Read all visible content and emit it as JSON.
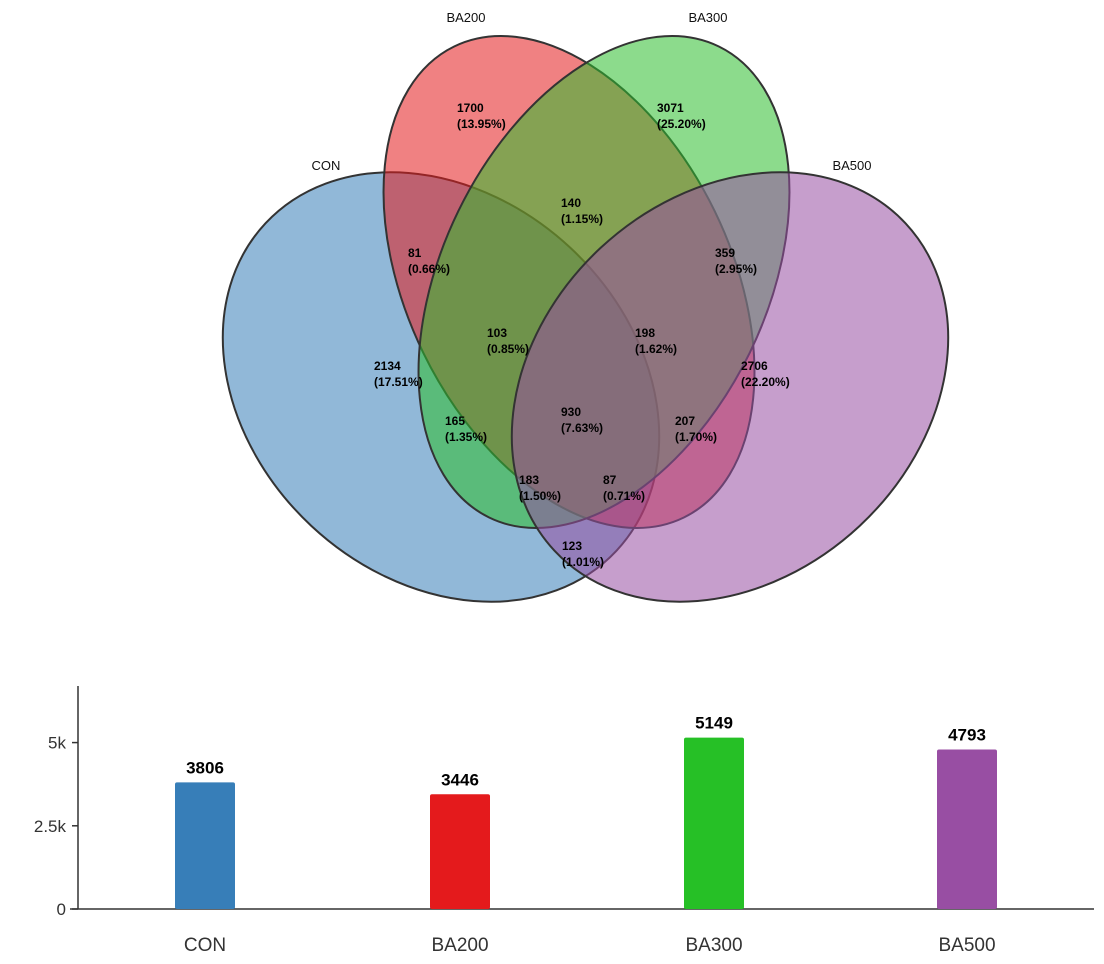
{
  "chart_data": [
    {
      "type": "venn",
      "sets": [
        {
          "name": "CON",
          "color": "#377eb8"
        },
        {
          "name": "BA200",
          "color": "#e41a1c"
        },
        {
          "name": "BA300",
          "color": "#2ebe2e"
        },
        {
          "name": "BA500",
          "color": "#984ea3"
        }
      ],
      "regions": [
        {
          "sets": [
            "BA200"
          ],
          "count": "1700",
          "percent": "(13.95%)"
        },
        {
          "sets": [
            "BA300"
          ],
          "count": "3071",
          "percent": "(25.20%)"
        },
        {
          "sets": [
            "BA200",
            "BA300"
          ],
          "count": "140",
          "percent": "(1.15%)"
        },
        {
          "sets": [
            "CON",
            "BA200"
          ],
          "count": "81",
          "percent": "(0.66%)"
        },
        {
          "sets": [
            "BA300",
            "BA500"
          ],
          "count": "359",
          "percent": "(2.95%)"
        },
        {
          "sets": [
            "CON",
            "BA200",
            "BA300"
          ],
          "count": "103",
          "percent": "(0.85%)"
        },
        {
          "sets": [
            "BA200",
            "BA300",
            "BA500"
          ],
          "count": "198",
          "percent": "(1.62%)"
        },
        {
          "sets": [
            "CON"
          ],
          "count": "2134",
          "percent": "(17.51%)"
        },
        {
          "sets": [
            "BA500"
          ],
          "count": "2706",
          "percent": "(22.20%)"
        },
        {
          "sets": [
            "CON",
            "BA300"
          ],
          "count": "165",
          "percent": "(1.35%)"
        },
        {
          "sets": [
            "CON",
            "BA200",
            "BA300",
            "BA500"
          ],
          "count": "930",
          "percent": "(7.63%)"
        },
        {
          "sets": [
            "BA200",
            "BA500"
          ],
          "count": "207",
          "percent": "(1.70%)"
        },
        {
          "sets": [
            "CON",
            "BA300",
            "BA500"
          ],
          "count": "183",
          "percent": "(1.50%)"
        },
        {
          "sets": [
            "CON",
            "BA200",
            "BA500"
          ],
          "count": "87",
          "percent": "(0.71%)"
        },
        {
          "sets": [
            "CON",
            "BA500"
          ],
          "count": "123",
          "percent": "(1.01%)"
        }
      ]
    },
    {
      "type": "bar",
      "categories": [
        "CON",
        "BA200",
        "BA300",
        "BA500"
      ],
      "values": [
        3806,
        3446,
        5149,
        4793
      ],
      "value_labels": [
        "3806",
        "3446",
        "5149",
        "4793"
      ],
      "colors": [
        "#377eb8",
        "#e41a1c",
        "#26c026",
        "#984ea3"
      ],
      "yticks": [
        {
          "value": 0,
          "label": "0"
        },
        {
          "value": 2500,
          "label": "2.5k"
        },
        {
          "value": 5000,
          "label": "5k"
        }
      ],
      "ylim": [
        0,
        6700
      ],
      "grid": false
    }
  ]
}
